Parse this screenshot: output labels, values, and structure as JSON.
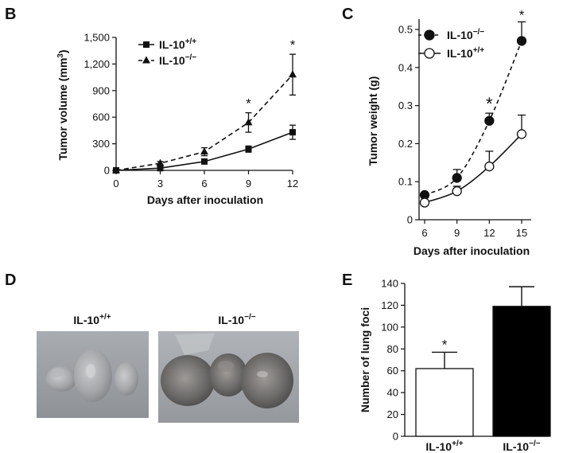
{
  "panels": {
    "B": "B",
    "C": "C",
    "D": "D",
    "E": "E"
  },
  "chart_data": [
    {
      "panel": "B",
      "type": "line",
      "title": "",
      "xlabel": "Days after inoculation",
      "ylabel": "Tumor volume (mm³)",
      "ylabel_parts": {
        "base": "Tumor volume (mm",
        "sup": "3",
        "end": ")"
      },
      "x": [
        0,
        3,
        6,
        9,
        12
      ],
      "x_ticks": [
        "0",
        "3",
        "6",
        "9",
        "12"
      ],
      "y_ticks": [
        "0",
        "300",
        "600",
        "900",
        "1,200",
        "1,500"
      ],
      "y_tick_values": [
        0,
        300,
        600,
        900,
        1200,
        1500
      ],
      "xlim": [
        0,
        12
      ],
      "ylim": [
        0,
        1500
      ],
      "legend_position": "top-left",
      "series": [
        {
          "name": "IL-10+/+",
          "label_base": "IL-10",
          "label_sup": "+/+",
          "marker": "square",
          "line": "solid",
          "values": [
            0,
            25,
            100,
            240,
            430
          ],
          "errors": [
            0,
            8,
            20,
            35,
            80
          ]
        },
        {
          "name": "IL-10−/−",
          "label_base": "IL-10",
          "label_sup": "−/−",
          "marker": "triangle",
          "line": "dashed",
          "values": [
            0,
            80,
            210,
            540,
            1080
          ],
          "errors": [
            0,
            20,
            45,
            110,
            230
          ]
        }
      ],
      "significance": [
        {
          "x": 9,
          "label": "*"
        },
        {
          "x": 12,
          "label": "*"
        }
      ]
    },
    {
      "panel": "C",
      "type": "line",
      "title": "",
      "xlabel": "Days after inoculation",
      "ylabel": "Tumor weight (g)",
      "x": [
        6,
        9,
        12,
        15
      ],
      "x_ticks": [
        "6",
        "9",
        "12",
        "15"
      ],
      "y_ticks": [
        "0",
        "0.1",
        "0.2",
        "0.3",
        "0.4",
        "0.5"
      ],
      "y_tick_values": [
        0,
        0.1,
        0.2,
        0.3,
        0.4,
        0.5
      ],
      "xlim": [
        5,
        15.6
      ],
      "ylim": [
        0,
        0.52
      ],
      "legend_position": "top-left",
      "series": [
        {
          "name": "IL-10−/−",
          "label_base": "IL-10",
          "label_sup": "−/−",
          "marker": "filled-circle",
          "line": "dashed",
          "values": [
            0.065,
            0.11,
            0.26,
            0.47
          ],
          "errors": [
            0.006,
            0.022,
            0.02,
            0.05
          ]
        },
        {
          "name": "IL-10+/+",
          "label_base": "IL-10",
          "label_sup": "+/+",
          "marker": "open-circle",
          "line": "solid",
          "values": [
            0.045,
            0.075,
            0.14,
            0.225
          ],
          "errors": [
            0.006,
            0.013,
            0.04,
            0.05
          ]
        }
      ],
      "significance": [
        {
          "x": 12,
          "label": "*",
          "size": "large"
        },
        {
          "x": 15,
          "label": "*",
          "size": "normal"
        }
      ]
    },
    {
      "panel": "E",
      "type": "bar",
      "title": "",
      "xlabel": "",
      "ylabel": "Number of lung foci",
      "categories": [
        "IL-10+/+",
        "IL-10−/−"
      ],
      "category_parts": [
        {
          "base": "IL-10",
          "sup": "+/+"
        },
        {
          "base": "IL-10",
          "sup": "−/−"
        }
      ],
      "values": [
        62,
        119
      ],
      "errors": [
        15,
        18
      ],
      "bar_fills": [
        "#ffffff",
        "#000000"
      ],
      "y_ticks": [
        "0",
        "20",
        "40",
        "60",
        "80",
        "100",
        "120",
        "140"
      ],
      "y_tick_values": [
        0,
        20,
        40,
        60,
        80,
        100,
        120,
        140
      ],
      "ylim": [
        0,
        140
      ],
      "significance": [
        {
          "category_index": 0,
          "label": "*"
        }
      ]
    }
  ],
  "photos": {
    "left_label_base": "IL-10",
    "left_label_sup": "+/+",
    "right_label_base": "IL-10",
    "right_label_sup": "−/−"
  },
  "colors": {
    "ink": "#111111",
    "photo_background_left": "#9c9fa4",
    "photo_background_right": "#a3a6aa"
  }
}
